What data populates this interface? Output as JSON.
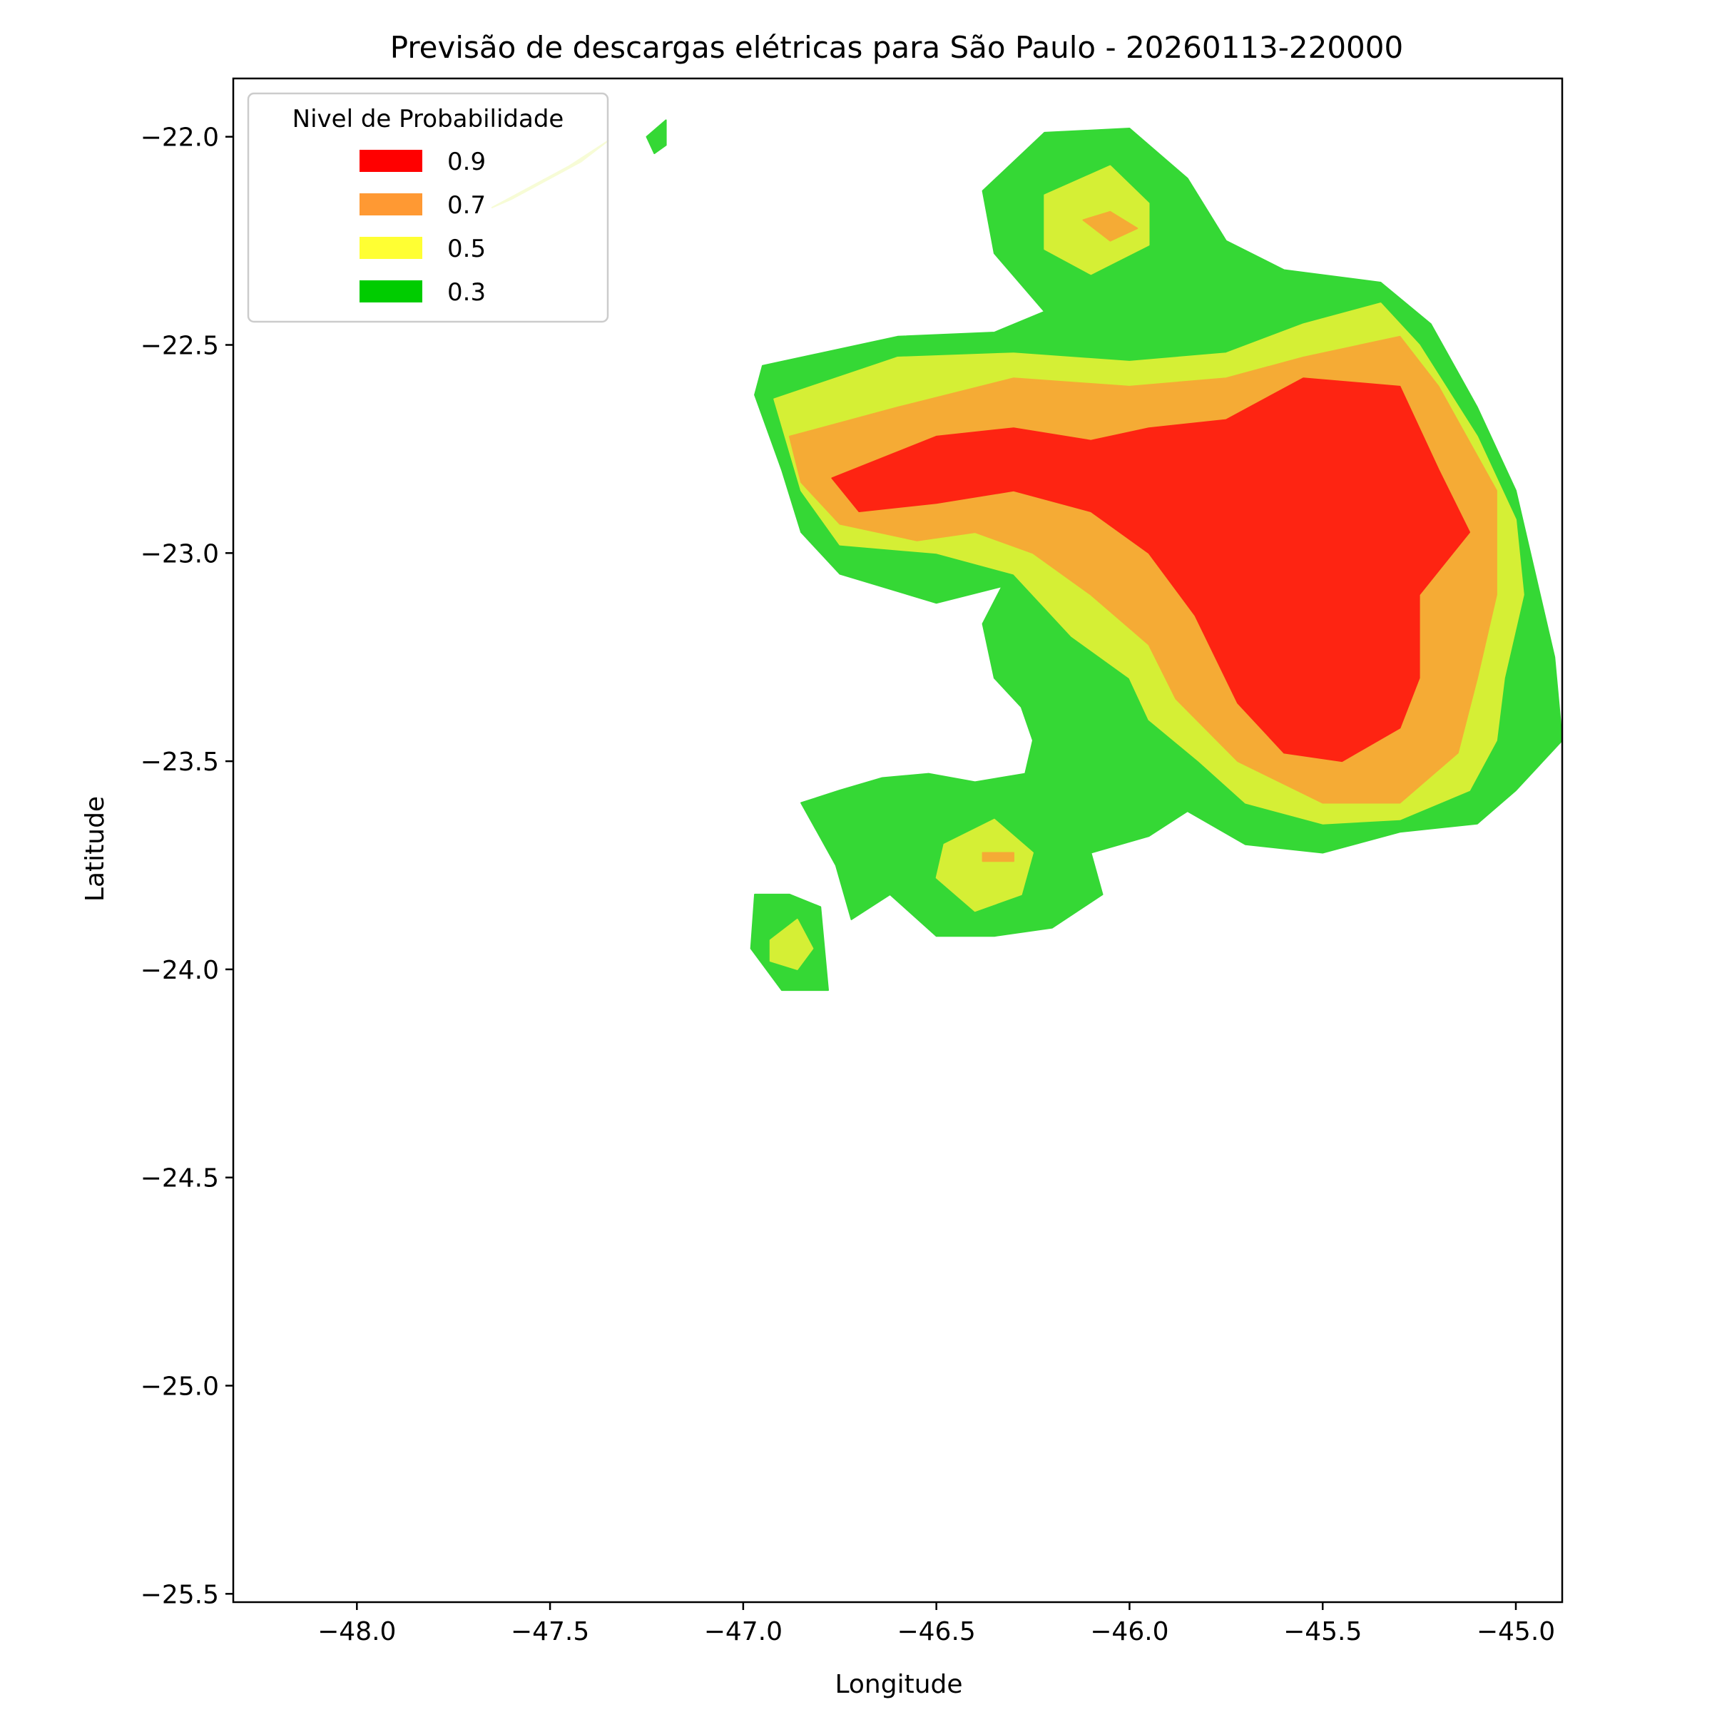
{
  "chart_data": {
    "type": "contour",
    "title": "Previsão de descargas elétricas para São Paulo - 20260113-220000",
    "xlabel": "Longitude",
    "ylabel": "Latitude",
    "xlim": [
      -48.32,
      -44.88
    ],
    "ylim": [
      -25.52,
      -21.86
    ],
    "xticks": [
      -48.0,
      -47.5,
      -47.0,
      -46.5,
      -46.0,
      -45.5,
      -45.0
    ],
    "yticks": [
      -22.0,
      -22.5,
      -23.0,
      -23.5,
      -24.0,
      -24.5,
      -25.0,
      -25.5
    ],
    "xtick_labels": [
      "−48.0",
      "−47.5",
      "−47.0",
      "−46.5",
      "−46.0",
      "−45.5",
      "−45.0"
    ],
    "ytick_labels": [
      "−22.0",
      "−22.5",
      "−23.0",
      "−23.5",
      "−24.0",
      "−24.5",
      "−25.0",
      "−25.5"
    ],
    "grid": false,
    "legend": {
      "title": "Nivel de Probabilidade",
      "placement": "top-left",
      "entries": [
        {
          "label": "0.9",
          "color": "#ff0000"
        },
        {
          "label": "0.7",
          "color": "#ff9933"
        },
        {
          "label": "0.5",
          "color": "#ffff33"
        },
        {
          "label": "0.3",
          "color": "#00cc00"
        }
      ]
    },
    "levels": [
      {
        "level": 0.3,
        "fill": "#35d835",
        "regions": [
          [
            [
              -46.95,
              -22.55
            ],
            [
              -46.6,
              -22.48
            ],
            [
              -46.35,
              -22.47
            ],
            [
              -46.22,
              -22.42
            ],
            [
              -46.35,
              -22.28
            ],
            [
              -46.38,
              -22.13
            ],
            [
              -46.22,
              -21.99
            ],
            [
              -46.0,
              -21.98
            ],
            [
              -45.85,
              -22.1
            ],
            [
              -45.75,
              -22.25
            ],
            [
              -45.6,
              -22.32
            ],
            [
              -45.35,
              -22.35
            ],
            [
              -45.22,
              -22.45
            ],
            [
              -45.1,
              -22.65
            ],
            [
              -45.0,
              -22.85
            ],
            [
              -44.95,
              -23.05
            ],
            [
              -44.9,
              -23.25
            ],
            [
              -44.88,
              -23.45
            ],
            [
              -45.0,
              -23.57
            ],
            [
              -45.1,
              -23.65
            ],
            [
              -45.3,
              -23.67
            ],
            [
              -45.5,
              -23.72
            ],
            [
              -45.7,
              -23.7
            ],
            [
              -45.85,
              -23.62
            ],
            [
              -45.95,
              -23.68
            ],
            [
              -46.1,
              -23.72
            ],
            [
              -46.07,
              -23.82
            ],
            [
              -46.2,
              -23.9
            ],
            [
              -46.35,
              -23.92
            ],
            [
              -46.5,
              -23.92
            ],
            [
              -46.62,
              -23.82
            ],
            [
              -46.72,
              -23.88
            ],
            [
              -46.76,
              -23.75
            ],
            [
              -46.85,
              -23.6
            ],
            [
              -46.75,
              -23.57
            ],
            [
              -46.64,
              -23.54
            ],
            [
              -46.52,
              -23.53
            ],
            [
              -46.4,
              -23.55
            ],
            [
              -46.27,
              -23.53
            ],
            [
              -46.25,
              -23.45
            ],
            [
              -46.28,
              -23.37
            ],
            [
              -46.35,
              -23.3
            ],
            [
              -46.38,
              -23.17
            ],
            [
              -46.33,
              -23.08
            ],
            [
              -46.5,
              -23.12
            ],
            [
              -46.75,
              -23.05
            ],
            [
              -46.85,
              -22.95
            ],
            [
              -46.9,
              -22.8
            ],
            [
              -46.97,
              -22.62
            ]
          ],
          [
            [
              -46.97,
              -23.82
            ],
            [
              -46.88,
              -23.82
            ],
            [
              -46.8,
              -23.85
            ],
            [
              -46.78,
              -24.05
            ],
            [
              -46.9,
              -24.05
            ],
            [
              -46.98,
              -23.95
            ]
          ],
          [
            [
              -47.25,
              -22.0
            ],
            [
              -47.2,
              -21.96
            ],
            [
              -47.2,
              -22.02
            ],
            [
              -47.23,
              -22.04
            ]
          ]
        ]
      },
      {
        "level": 0.5,
        "fill": "#d5ef35",
        "regions": [
          [
            [
              -46.92,
              -22.63
            ],
            [
              -46.6,
              -22.53
            ],
            [
              -46.3,
              -22.52
            ],
            [
              -46.0,
              -22.54
            ],
            [
              -45.75,
              -22.52
            ],
            [
              -45.55,
              -22.45
            ],
            [
              -45.35,
              -22.4
            ],
            [
              -45.25,
              -22.5
            ],
            [
              -45.1,
              -22.72
            ],
            [
              -45.0,
              -22.92
            ],
            [
              -44.98,
              -23.1
            ],
            [
              -45.03,
              -23.3
            ],
            [
              -45.05,
              -23.45
            ],
            [
              -45.12,
              -23.57
            ],
            [
              -45.3,
              -23.64
            ],
            [
              -45.5,
              -23.65
            ],
            [
              -45.7,
              -23.6
            ],
            [
              -45.82,
              -23.5
            ],
            [
              -45.95,
              -23.4
            ],
            [
              -46.0,
              -23.3
            ],
            [
              -46.15,
              -23.2
            ],
            [
              -46.3,
              -23.05
            ],
            [
              -46.5,
              -23.0
            ],
            [
              -46.75,
              -22.98
            ],
            [
              -46.85,
              -22.85
            ]
          ],
          [
            [
              -46.22,
              -22.14
            ],
            [
              -46.05,
              -22.07
            ],
            [
              -45.95,
              -22.16
            ],
            [
              -45.95,
              -22.26
            ],
            [
              -46.1,
              -22.33
            ],
            [
              -46.22,
              -22.27
            ]
          ],
          [
            [
              -46.48,
              -23.7
            ],
            [
              -46.35,
              -23.64
            ],
            [
              -46.25,
              -23.72
            ],
            [
              -46.28,
              -23.82
            ],
            [
              -46.4,
              -23.86
            ],
            [
              -46.5,
              -23.78
            ]
          ],
          [
            [
              -46.93,
              -23.93
            ],
            [
              -46.86,
              -23.88
            ],
            [
              -46.82,
              -23.95
            ],
            [
              -46.86,
              -24.0
            ],
            [
              -46.93,
              -23.98
            ]
          ],
          [
            [
              -47.65,
              -22.17
            ],
            [
              -47.45,
              -22.07
            ],
            [
              -47.35,
              -22.01
            ],
            [
              -47.42,
              -22.06
            ],
            [
              -47.6,
              -22.15
            ]
          ]
        ]
      },
      {
        "level": 0.7,
        "fill": "#f5ab35",
        "regions": [
          [
            [
              -46.88,
              -22.72
            ],
            [
              -46.6,
              -22.65
            ],
            [
              -46.3,
              -22.58
            ],
            [
              -46.0,
              -22.6
            ],
            [
              -45.75,
              -22.58
            ],
            [
              -45.55,
              -22.53
            ],
            [
              -45.3,
              -22.48
            ],
            [
              -45.2,
              -22.6
            ],
            [
              -45.05,
              -22.85
            ],
            [
              -45.05,
              -23.1
            ],
            [
              -45.1,
              -23.3
            ],
            [
              -45.15,
              -23.48
            ],
            [
              -45.3,
              -23.6
            ],
            [
              -45.5,
              -23.6
            ],
            [
              -45.72,
              -23.5
            ],
            [
              -45.88,
              -23.35
            ],
            [
              -45.95,
              -23.22
            ],
            [
              -46.1,
              -23.1
            ],
            [
              -46.25,
              -23.0
            ],
            [
              -46.4,
              -22.95
            ],
            [
              -46.55,
              -22.97
            ],
            [
              -46.75,
              -22.93
            ],
            [
              -46.85,
              -22.83
            ]
          ],
          [
            [
              -46.12,
              -22.2
            ],
            [
              -46.05,
              -22.18
            ],
            [
              -45.98,
              -22.22
            ],
            [
              -46.05,
              -22.25
            ]
          ],
          [
            [
              -46.38,
              -23.72
            ],
            [
              -46.3,
              -23.72
            ],
            [
              -46.3,
              -23.74
            ],
            [
              -46.38,
              -23.74
            ]
          ]
        ]
      },
      {
        "level": 0.9,
        "fill": "#fe2412",
        "regions": [
          [
            [
              -46.77,
              -22.82
            ],
            [
              -46.5,
              -22.72
            ],
            [
              -46.3,
              -22.7
            ],
            [
              -46.1,
              -22.73
            ],
            [
              -45.95,
              -22.7
            ],
            [
              -45.75,
              -22.68
            ],
            [
              -45.55,
              -22.58
            ],
            [
              -45.3,
              -22.6
            ],
            [
              -45.2,
              -22.8
            ],
            [
              -45.12,
              -22.95
            ],
            [
              -45.25,
              -23.1
            ],
            [
              -45.25,
              -23.3
            ],
            [
              -45.3,
              -23.42
            ],
            [
              -45.45,
              -23.5
            ],
            [
              -45.6,
              -23.48
            ],
            [
              -45.72,
              -23.36
            ],
            [
              -45.83,
              -23.15
            ],
            [
              -45.95,
              -23.0
            ],
            [
              -46.1,
              -22.9
            ],
            [
              -46.3,
              -22.85
            ],
            [
              -46.5,
              -22.88
            ],
            [
              -46.7,
              -22.9
            ]
          ]
        ]
      }
    ]
  }
}
